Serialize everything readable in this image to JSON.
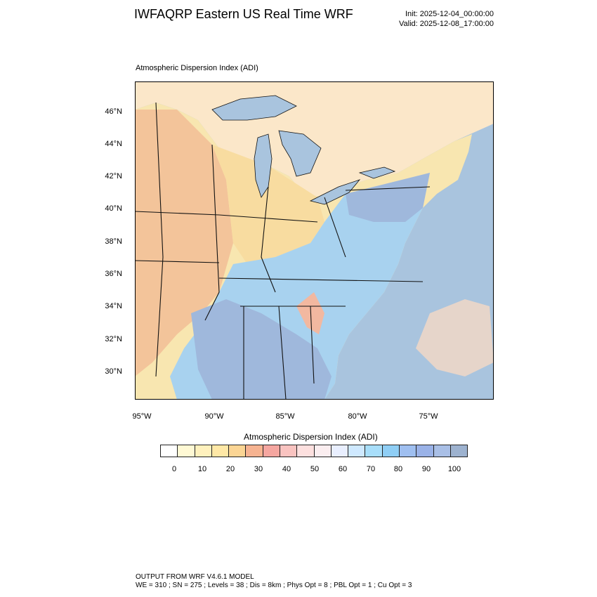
{
  "header": {
    "title": "IWFAQRP Eastern US Real Time WRF",
    "init": "Init: 2025-12-04_00:00:00",
    "valid": "Valid: 2025-12-08_17:00:00"
  },
  "plot": {
    "label": "Atmospheric Dispersion Index   (ADI)",
    "lat_ticks": [
      "46°N",
      "44°N",
      "42°N",
      "40°N",
      "38°N",
      "36°N",
      "34°N",
      "32°N",
      "30°N"
    ],
    "lon_ticks": [
      "95°W",
      "90°W",
      "85°W",
      "80°W",
      "75°W"
    ],
    "colors": {
      "ocean": "#a9c4de",
      "low": "#f3c49a",
      "mid": "#f8e6b0",
      "high": "#a8d2ef",
      "very_high": "#9fb8dc",
      "canada": "#fbe7c9",
      "border": "#111111"
    }
  },
  "colorbar": {
    "title": "Atmospheric Dispersion Index  (ADI)",
    "labels": [
      "0",
      "10",
      "20",
      "30",
      "40",
      "50",
      "60",
      "70",
      "80",
      "90",
      "100"
    ],
    "colors": [
      "#ffffff",
      "#fff9d4",
      "#fff1bd",
      "#ffe8a6",
      "#fbd594",
      "#f6b391",
      "#f5a6a0",
      "#f9c3c0",
      "#fde0df",
      "#fbeef0",
      "#e9efff",
      "#cfe9ff",
      "#a8defa",
      "#8fcef5",
      "#9fbff0",
      "#9ab2e7",
      "#a9bfe6",
      "#9db2cf"
    ]
  },
  "footer": {
    "line1": "OUTPUT FROM WRF V4.6.1 MODEL",
    "line2": "WE = 310 ; SN = 275 ; Levels = 38 ; Dis = 8km ; Phys Opt = 8 ; PBL Opt = 1 ; Cu Opt = 3"
  }
}
